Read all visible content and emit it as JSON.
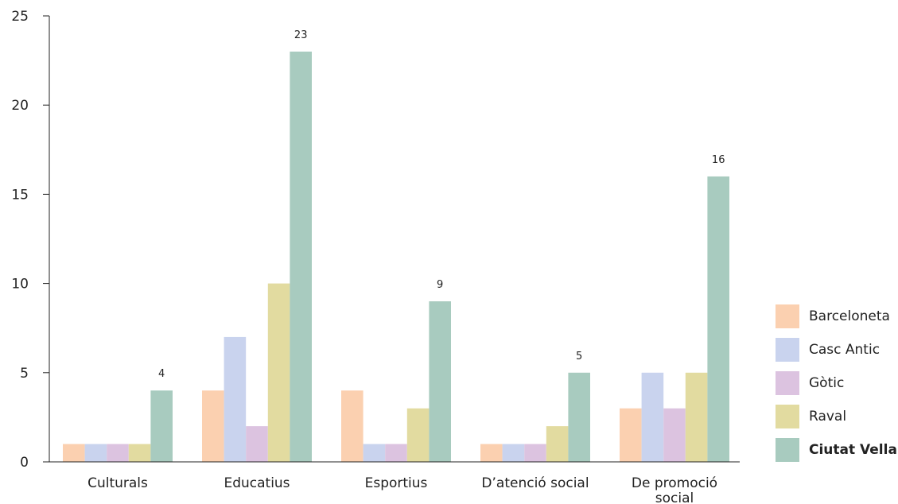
{
  "chart_data": {
    "type": "bar",
    "categories": [
      [
        "Culturals"
      ],
      [
        "Educatius"
      ],
      [
        "Esportius"
      ],
      [
        "D’atenció social"
      ],
      [
        "De promoció",
        "social"
      ]
    ],
    "ylim": [
      0,
      25
    ],
    "yticks": [
      0,
      5,
      10,
      15,
      20,
      25
    ],
    "grid": false,
    "legend_position": "right",
    "series": [
      {
        "name": "Barceloneta",
        "color": "#fbd0b0",
        "values": [
          1,
          4,
          4,
          1,
          3
        ]
      },
      {
        "name": "Casc Antic",
        "color": "#c9d3ee",
        "values": [
          1,
          7,
          1,
          1,
          5
        ]
      },
      {
        "name": "Gòtic",
        "color": "#dcc3e0",
        "values": [
          1,
          2,
          1,
          1,
          3
        ]
      },
      {
        "name": "Raval",
        "color": "#e2dba0",
        "values": [
          1,
          10,
          3,
          2,
          5
        ]
      },
      {
        "name": "Ciutat Vella",
        "color": "#a8cbbf",
        "values": [
          4,
          23,
          9,
          5,
          16
        ],
        "bold": true,
        "labeled": true
      }
    ]
  }
}
